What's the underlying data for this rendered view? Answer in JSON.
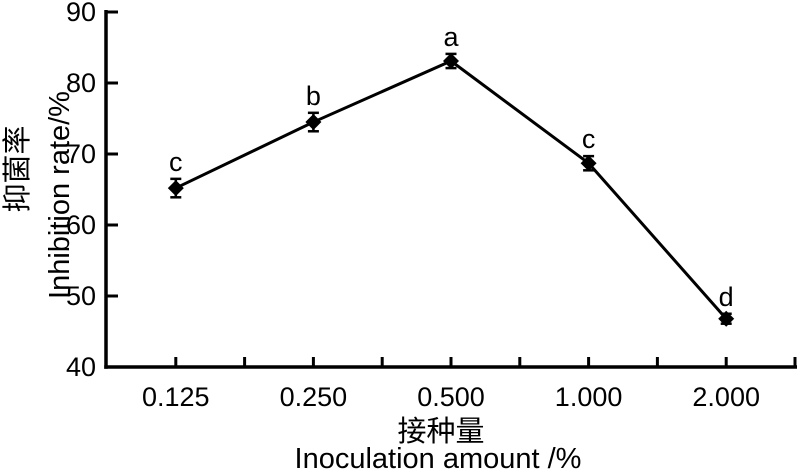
{
  "figure": {
    "background": "#ffffff",
    "ink_color": "#000000"
  },
  "chart_data": {
    "type": "line",
    "categories": [
      "0.125",
      "0.250",
      "0.500",
      "1.000",
      "2.000"
    ],
    "values": [
      65.2,
      74.5,
      83.1,
      68.7,
      46.8
    ],
    "error_bars": [
      1.3,
      1.3,
      1.0,
      1.0,
      0.7
    ],
    "point_labels": [
      "c",
      "b",
      "a",
      "c",
      "d"
    ],
    "series_name": "Inhibition rate",
    "title": "",
    "xlabel_cn": "接种量",
    "xlabel_en": "Inoculation amount /%",
    "ylabel_cn": "抑菌率",
    "ylabel_en": "Inhibition rate/%",
    "ylim": [
      40,
      90
    ],
    "yticks": [
      90,
      80,
      70,
      60,
      50,
      40
    ],
    "x_minor_ticks": true,
    "grid": false,
    "legend": "none",
    "marker": "filled-diamond",
    "line_color": "#000000"
  }
}
